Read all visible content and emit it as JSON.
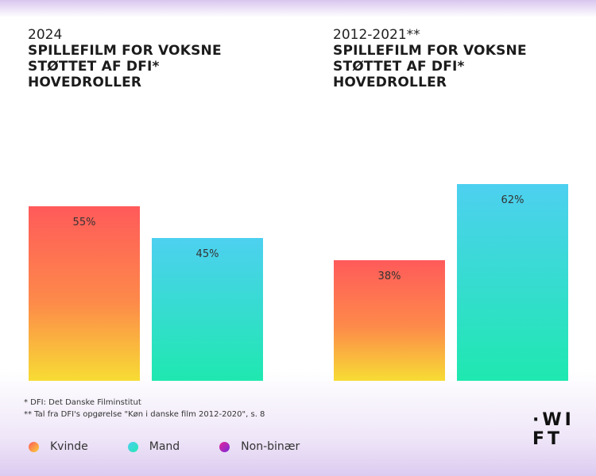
{
  "charts": [
    {
      "year": "2024",
      "title_lines": [
        "SPILLEFILM FOR VOKSNE",
        "STØTTET AF DFI*",
        "HOVEDROLLER"
      ]
    },
    {
      "year": "2012-2021**",
      "title_lines": [
        "SPILLEFILM FOR VOKSNE",
        "STØTTET AF DFI*",
        "HOVEDROLLER"
      ]
    }
  ],
  "chart_data": [
    {
      "type": "bar",
      "title": "2024 SPILLEFILM FOR VOKSNE STØTTET AF DFI* HOVEDROLLER",
      "categories": [
        "Kvinde",
        "Mand"
      ],
      "values": [
        55,
        45
      ],
      "labels": [
        "55%",
        "45%"
      ],
      "ylim": [
        0,
        100
      ],
      "grid": false
    },
    {
      "type": "bar",
      "title": "2012-2021** SPILLEFILM FOR VOKSNE STØTTET AF DFI* HOVEDROLLER",
      "categories": [
        "Kvinde",
        "Mand"
      ],
      "values": [
        38,
        62
      ],
      "labels": [
        "38%",
        "62%"
      ],
      "ylim": [
        0,
        100
      ],
      "grid": false
    }
  ],
  "footnotes": [
    "*  DFI: Det Danske Filminstitut",
    "** Tal fra DFI's opgørelse \"Køn i danske film 2012-2020\", s. 8"
  ],
  "legend": [
    {
      "label": "Kvinde",
      "icon": "kvinde-dot-icon"
    },
    {
      "label": "Mand",
      "icon": "mand-dot-icon"
    },
    {
      "label": "Non-binær",
      "icon": "nonbinaer-dot-icon"
    }
  ],
  "logo": {
    "line1": "·WI",
    "line2": "FT"
  },
  "colors": {
    "kvinde_top": "#ff5a5a",
    "kvinde_bottom": "#f7d93a",
    "mand_top": "#4dd0f0",
    "mand_bottom": "#1fe8b0",
    "nonbinaer": "#8a2bd6"
  }
}
